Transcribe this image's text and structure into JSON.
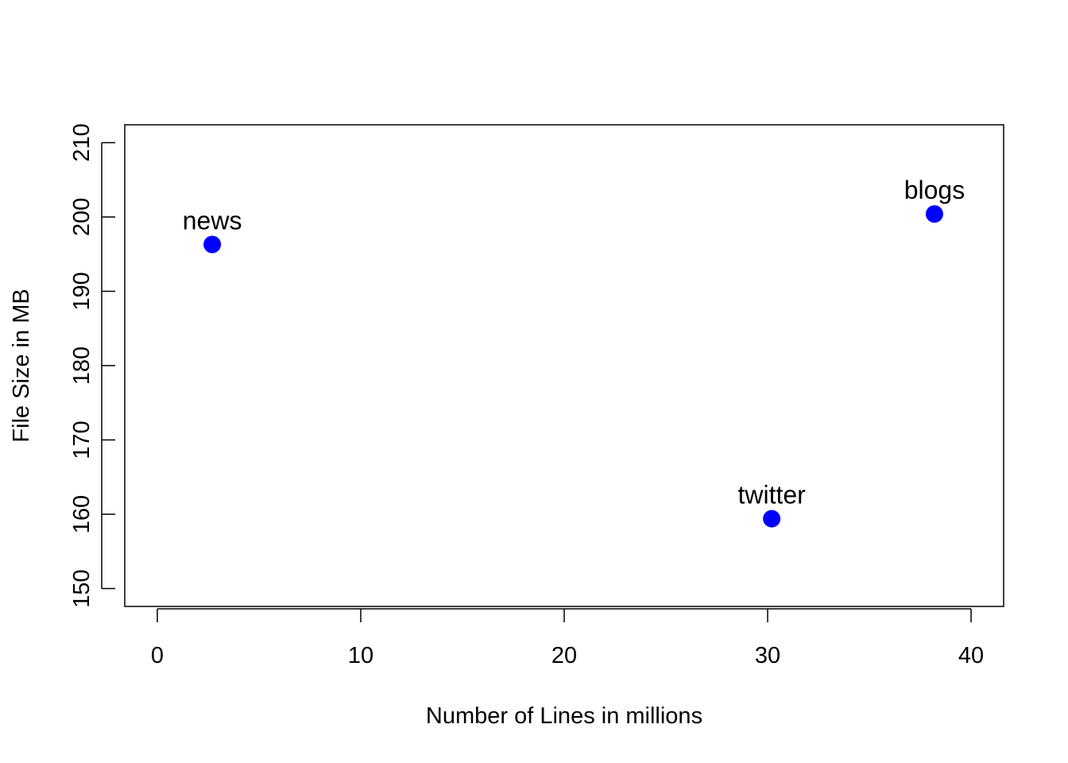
{
  "chart_data": {
    "type": "scatter",
    "xlabel": "Number of Lines in millions",
    "ylabel": "File Size in MB",
    "xlim": [
      -1.6,
      41.6
    ],
    "ylim": [
      147.6,
      212.4
    ],
    "xticks": [
      0,
      10,
      20,
      30,
      40
    ],
    "yticks": [
      150,
      160,
      170,
      180,
      190,
      200,
      210
    ],
    "grid": false,
    "point_color": "#0000FF",
    "points": [
      {
        "label": "news",
        "x": 2.7,
        "y": 196.3
      },
      {
        "label": "twitter",
        "x": 30.2,
        "y": 159.4
      },
      {
        "label": "blogs",
        "x": 38.2,
        "y": 200.4
      }
    ]
  }
}
